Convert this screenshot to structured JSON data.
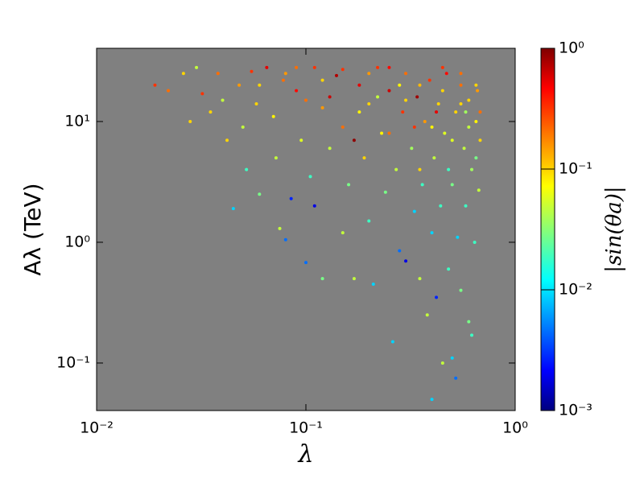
{
  "chart_data": {
    "type": "scatter",
    "xlabel": "λ",
    "ylabel": "Aλ (TeV)",
    "colorbar_label": "|sin(θa)|",
    "xlog": true,
    "ylog": true,
    "clog": true,
    "colormap": "jet",
    "background": "#808080",
    "xlim": [
      0.01,
      1
    ],
    "ylim": [
      0.0404,
      40.4
    ],
    "clim": [
      0.001,
      1
    ],
    "xticks": [
      {
        "value": 0.01,
        "label": "10⁻²"
      },
      {
        "value": 0.1,
        "label": "10⁻¹"
      },
      {
        "value": 1,
        "label": "10⁰"
      }
    ],
    "yticks": [
      {
        "value": 0.1,
        "label": "10⁻¹"
      },
      {
        "value": 1,
        "label": "10⁰"
      },
      {
        "value": 10,
        "label": "10¹"
      }
    ],
    "cticks": [
      {
        "value": 0.001,
        "label": "10⁻³"
      },
      {
        "value": 0.01,
        "label": "10⁻²"
      },
      {
        "value": 0.1,
        "label": "10⁻¹"
      },
      {
        "value": 1,
        "label": "10⁰"
      }
    ],
    "x": [
      0.019,
      0.022,
      0.026,
      0.028,
      0.03,
      0.032,
      0.035,
      0.038,
      0.04,
      0.042,
      0.045,
      0.048,
      0.05,
      0.052,
      0.055,
      0.058,
      0.06,
      0.065,
      0.07,
      0.072,
      0.075,
      0.078,
      0.08,
      0.085,
      0.09,
      0.095,
      0.1,
      0.105,
      0.11,
      0.11,
      0.12,
      0.12,
      0.13,
      0.14,
      0.15,
      0.15,
      0.16,
      0.17,
      0.18,
      0.19,
      0.2,
      0.2,
      0.21,
      0.22,
      0.23,
      0.24,
      0.25,
      0.26,
      0.27,
      0.28,
      0.29,
      0.3,
      0.3,
      0.32,
      0.33,
      0.34,
      0.35,
      0.36,
      0.37,
      0.38,
      0.39,
      0.4,
      0.4,
      0.41,
      0.42,
      0.43,
      0.44,
      0.45,
      0.46,
      0.47,
      0.48,
      0.5,
      0.5,
      0.52,
      0.52,
      0.53,
      0.55,
      0.55,
      0.57,
      0.58,
      0.6,
      0.6,
      0.62,
      0.62,
      0.64,
      0.65,
      0.66,
      0.67,
      0.68,
      0.68,
      0.06,
      0.08,
      0.1,
      0.12,
      0.15,
      0.18,
      0.2,
      0.25,
      0.3,
      0.35,
      0.4,
      0.45,
      0.5,
      0.55,
      0.6,
      0.65,
      0.35,
      0.25,
      0.45,
      0.55,
      0.65,
      0.13,
      0.17,
      0.22,
      0.28,
      0.33,
      0.42,
      0.48,
      0.58,
      0.09
    ],
    "y": [
      20,
      18,
      25,
      10,
      28,
      17,
      12,
      25,
      15,
      7,
      1.9,
      20,
      9,
      4,
      26,
      14,
      2.5,
      28,
      11,
      5,
      1.3,
      22,
      1.05,
      2.3,
      18,
      7,
      0.68,
      3.5,
      28,
      2.0,
      13,
      0.5,
      6,
      24,
      1.2,
      9,
      3,
      0.5,
      20,
      5,
      14,
      1.5,
      0.45,
      28,
      8,
      2.6,
      18,
      0.15,
      4,
      0.85,
      12,
      25,
      0.7,
      6,
      1.8,
      16,
      0.5,
      3,
      10,
      0.25,
      22,
      0.05,
      1.2,
      5,
      0.35,
      14,
      2,
      0.1,
      8,
      25,
      0.6,
      3,
      0.11,
      12,
      0.075,
      1.1,
      20,
      0.4,
      6,
      2,
      15,
      0.22,
      0.17,
      4,
      1,
      10,
      18,
      2.7,
      7,
      12,
      20,
      25,
      15,
      22,
      27,
      12,
      25,
      8,
      15,
      20,
      9,
      18,
      7,
      14,
      9,
      5,
      4,
      28,
      28,
      25,
      20,
      16,
      7,
      16,
      20,
      9,
      12,
      4,
      12,
      28
    ],
    "color_values": [
      0.3,
      0.2,
      0.1,
      0.1,
      0.05,
      0.3,
      0.1,
      0.2,
      0.05,
      0.1,
      0.01,
      0.15,
      0.05,
      0.02,
      0.3,
      0.1,
      0.03,
      0.5,
      0.08,
      0.05,
      0.05,
      0.2,
      0.005,
      0.003,
      0.4,
      0.06,
      0.005,
      0.02,
      0.3,
      0.002,
      0.15,
      0.03,
      0.05,
      0.7,
      0.05,
      0.2,
      0.03,
      0.05,
      0.5,
      0.1,
      0.1,
      0.02,
      0.01,
      0.3,
      0.08,
      0.03,
      0.6,
      0.01,
      0.05,
      0.005,
      0.3,
      0.2,
      0.002,
      0.04,
      0.01,
      0.8,
      0.05,
      0.02,
      0.15,
      0.05,
      0.3,
      0.01,
      0.01,
      0.05,
      0.003,
      0.1,
      0.02,
      0.05,
      0.06,
      0.4,
      0.02,
      0.03,
      0.01,
      0.1,
      0.005,
      0.01,
      0.2,
      0.03,
      0.05,
      0.02,
      0.1,
      0.03,
      0.02,
      0.04,
      0.02,
      0.08,
      0.15,
      0.05,
      0.1,
      0.2,
      0.1,
      0.15,
      0.2,
      0.1,
      0.3,
      0.08,
      0.15,
      0.2,
      0.1,
      0.12,
      0.08,
      0.1,
      0.06,
      0.1,
      0.05,
      0.03,
      0.1,
      0.4,
      0.3,
      0.2,
      0.1,
      0.6,
      0.9,
      0.05,
      0.08,
      0.3,
      0.5,
      0.02,
      0.04,
      0.2
    ]
  }
}
